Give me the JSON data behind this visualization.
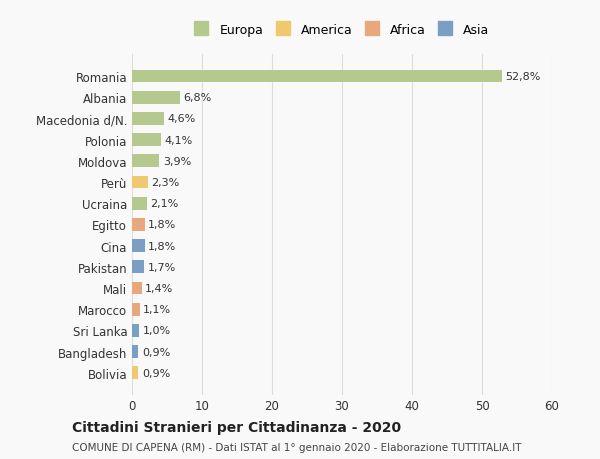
{
  "categories": [
    "Romania",
    "Albania",
    "Macedonia d/N.",
    "Polonia",
    "Moldova",
    "Perù",
    "Ucraina",
    "Egitto",
    "Cina",
    "Pakistan",
    "Mali",
    "Marocco",
    "Sri Lanka",
    "Bangladesh",
    "Bolivia"
  ],
  "values": [
    52.8,
    6.8,
    4.6,
    4.1,
    3.9,
    2.3,
    2.1,
    1.8,
    1.8,
    1.7,
    1.4,
    1.1,
    1.0,
    0.9,
    0.9
  ],
  "labels": [
    "52,8%",
    "6,8%",
    "4,6%",
    "4,1%",
    "3,9%",
    "2,3%",
    "2,1%",
    "1,8%",
    "1,8%",
    "1,7%",
    "1,4%",
    "1,1%",
    "1,0%",
    "0,9%",
    "0,9%"
  ],
  "continent": [
    "Europa",
    "Europa",
    "Europa",
    "Europa",
    "Europa",
    "America",
    "Europa",
    "Africa",
    "Asia",
    "Asia",
    "Africa",
    "Africa",
    "Asia",
    "Asia",
    "America"
  ],
  "colors": {
    "Europa": "#b5c98e",
    "America": "#f0c96e",
    "Africa": "#e8a87c",
    "Asia": "#7a9fc4"
  },
  "legend_order": [
    "Europa",
    "America",
    "Africa",
    "Asia"
  ],
  "title": "Cittadini Stranieri per Cittadinanza - 2020",
  "subtitle": "COMUNE DI CAPENA (RM) - Dati ISTAT al 1° gennaio 2020 - Elaborazione TUTTITALIA.IT",
  "xlim": [
    0,
    60
  ],
  "xticks": [
    0,
    10,
    20,
    30,
    40,
    50,
    60
  ],
  "background_color": "#f9f9f9",
  "grid_color": "#dddddd",
  "bar_height": 0.6
}
